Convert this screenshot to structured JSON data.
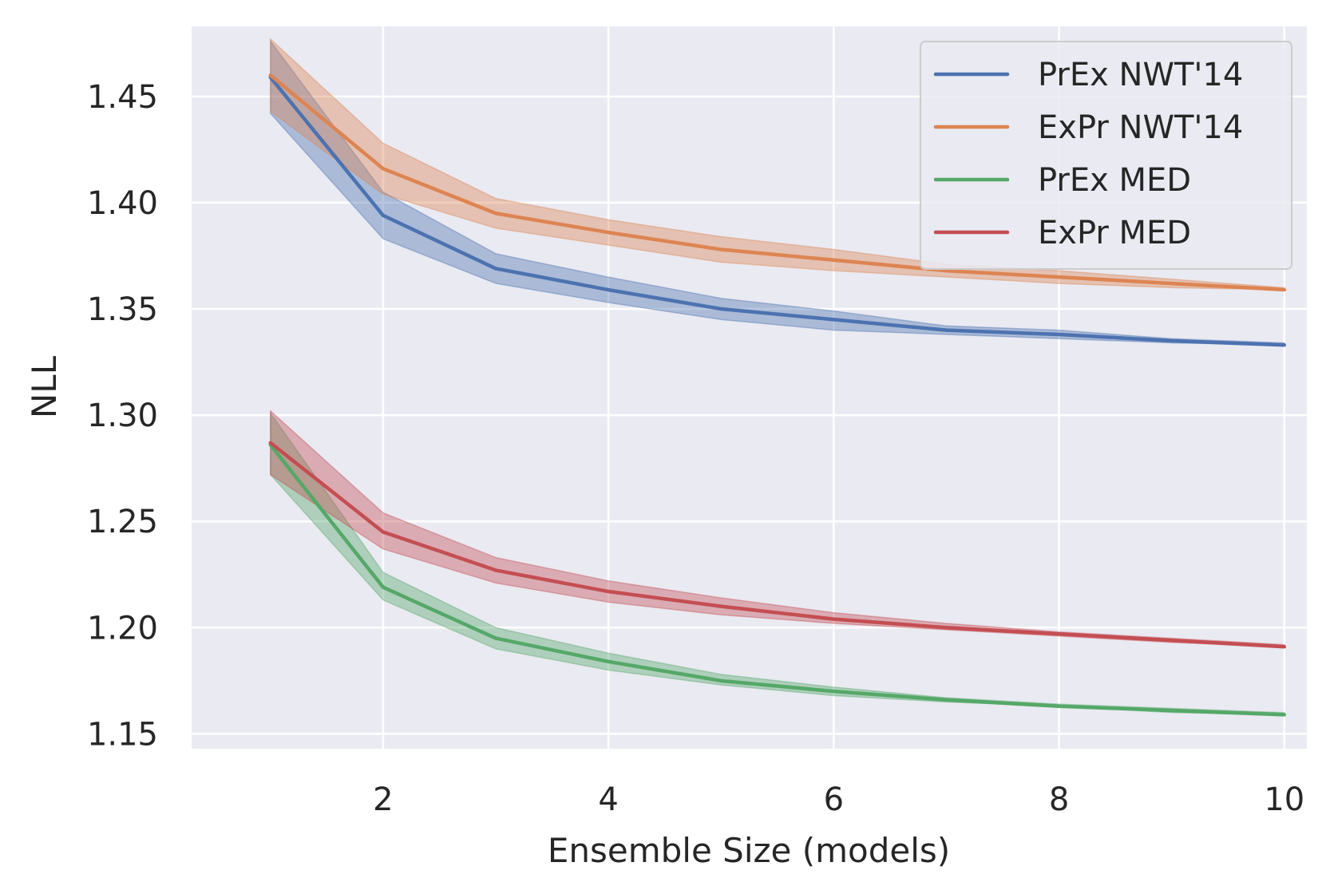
{
  "chart_data": {
    "type": "line",
    "xlabel": "Ensemble Size (models)",
    "ylabel": "NLL",
    "xlim": [
      0.3,
      10.2
    ],
    "ylim": [
      1.143,
      1.483
    ],
    "x_ticks": [
      2,
      4,
      6,
      8,
      10
    ],
    "x_tick_labels": [
      "2",
      "4",
      "6",
      "8",
      "10"
    ],
    "y_ticks": [
      1.15,
      1.2,
      1.25,
      1.3,
      1.35,
      1.4,
      1.45
    ],
    "y_tick_labels": [
      "1.15",
      "1.20",
      "1.25",
      "1.30",
      "1.35",
      "1.40",
      "1.45"
    ],
    "grid": true,
    "legend_position": "top-right",
    "x": [
      1,
      2,
      3,
      4,
      5,
      6,
      7,
      8,
      9,
      10
    ],
    "series": [
      {
        "name": "PrEx NWT'14",
        "color": "#4c72b0",
        "values": [
          1.459,
          1.394,
          1.369,
          1.359,
          1.35,
          1.345,
          1.34,
          1.338,
          1.335,
          1.333
        ],
        "lower": [
          1.442,
          1.383,
          1.362,
          1.353,
          1.345,
          1.34,
          1.338,
          1.336,
          1.334,
          1.333
        ],
        "upper": [
          1.476,
          1.405,
          1.376,
          1.365,
          1.355,
          1.349,
          1.342,
          1.34,
          1.336,
          1.334
        ]
      },
      {
        "name": "ExPr NWT'14",
        "color": "#dd8452",
        "values": [
          1.46,
          1.416,
          1.395,
          1.386,
          1.378,
          1.373,
          1.368,
          1.365,
          1.362,
          1.359
        ],
        "lower": [
          1.443,
          1.404,
          1.388,
          1.38,
          1.372,
          1.368,
          1.365,
          1.362,
          1.36,
          1.359
        ],
        "upper": [
          1.477,
          1.428,
          1.402,
          1.392,
          1.384,
          1.378,
          1.371,
          1.368,
          1.364,
          1.36
        ]
      },
      {
        "name": "PrEx MED",
        "color": "#55a868",
        "values": [
          1.286,
          1.219,
          1.195,
          1.184,
          1.175,
          1.17,
          1.166,
          1.163,
          1.161,
          1.159
        ],
        "lower": [
          1.272,
          1.213,
          1.19,
          1.18,
          1.173,
          1.168,
          1.165,
          1.163,
          1.16,
          1.159
        ],
        "upper": [
          1.301,
          1.226,
          1.2,
          1.188,
          1.178,
          1.172,
          1.167,
          1.164,
          1.162,
          1.16
        ]
      },
      {
        "name": "ExPr MED",
        "color": "#c44e52",
        "values": [
          1.287,
          1.245,
          1.227,
          1.217,
          1.21,
          1.204,
          1.2,
          1.197,
          1.194,
          1.191
        ],
        "lower": [
          1.272,
          1.237,
          1.221,
          1.212,
          1.206,
          1.202,
          1.199,
          1.196,
          1.193,
          1.191
        ],
        "upper": [
          1.302,
          1.254,
          1.233,
          1.222,
          1.214,
          1.207,
          1.202,
          1.198,
          1.195,
          1.192
        ]
      }
    ]
  }
}
